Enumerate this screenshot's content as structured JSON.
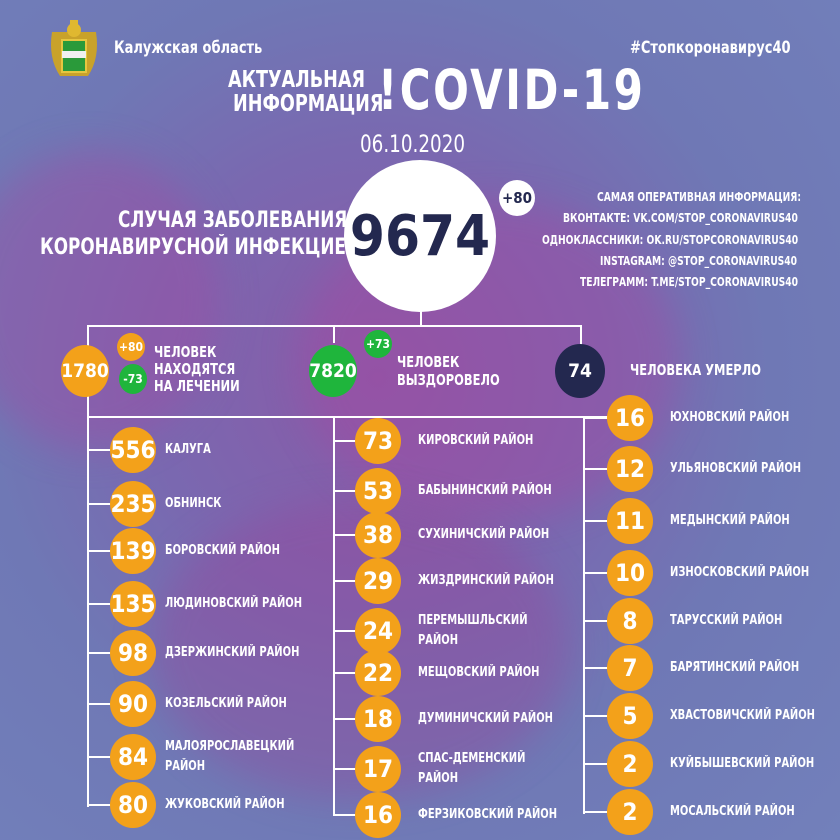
{
  "header": {
    "region": "Калужская область",
    "hashtag": "#Стопкоронавирус40",
    "title_line1": "АКТУАЛЬНАЯ",
    "title_line2": "ИНФОРМАЦИЯ",
    "title_main": "!COVID-19",
    "date": "06.10.2020"
  },
  "total": {
    "label_line1": "СЛУЧАЯ ЗАБОЛЕВАНИЯ",
    "label_line2": "КОРОНАВИРУСНОЙ ИНФЕКЦИЕЙ",
    "value": "9674",
    "delta": "+80"
  },
  "links": [
    "САМАЯ ОПЕРАТИВНАЯ ИНФОРМАЦИЯ:",
    "ВКОНТАКТЕ: VK.COM/STOP_CORONAVIRUS40",
    "ОДНОКЛАССНИКИ: OK.RU/STOPCORONAVIRUS40",
    "INSTAGRAM: @STOP_CORONAVIRUS40",
    "ТЕЛЕГРАММ: T.ME/STOP_CORONAVIRUS40"
  ],
  "stats": {
    "treatment": {
      "value": "1780",
      "plus": "+80",
      "minus": "-73",
      "label1": "ЧЕЛОВЕК",
      "label2": "НАХОДЯТСЯ",
      "label3": "НА ЛЕЧЕНИИ"
    },
    "recovered": {
      "value": "7820",
      "plus": "+73",
      "label1": "ЧЕЛОВЕК",
      "label2": "ВЫЗДОРОВЕЛО"
    },
    "died": {
      "value": "74",
      "label": "ЧЕЛОВЕКА УМЕРЛО"
    }
  },
  "colors": {
    "orange": "#f3a11a",
    "green": "#1fb53c",
    "navy": "#23284f"
  },
  "districts": {
    "left": [
      {
        "n": "556",
        "name": "КАЛУГА"
      },
      {
        "n": "235",
        "name": "ОБНИНСК"
      },
      {
        "n": "139",
        "name": "БОРОВСКИЙ РАЙОН"
      },
      {
        "n": "135",
        "name": "ЛЮДИНОВСКИЙ РАЙОН"
      },
      {
        "n": "98",
        "name": "ДЗЕРЖИНСКИЙ РАЙОН"
      },
      {
        "n": "90",
        "name": "КОЗЕЛЬСКИЙ РАЙОН"
      },
      {
        "n": "84",
        "name": "МАЛОЯРОСЛАВЕЦКИЙ",
        "name2": "РАЙОН"
      },
      {
        "n": "80",
        "name": "ЖУКОВСКИЙ РАЙОН"
      }
    ],
    "middle": [
      {
        "n": "73",
        "name": "КИРОВСКИЙ РАЙОН"
      },
      {
        "n": "53",
        "name": "БАБЫНИНСКИЙ РАЙОН"
      },
      {
        "n": "38",
        "name": "СУХИНИЧСКИЙ РАЙОН"
      },
      {
        "n": "29",
        "name": "ЖИЗДРИНСКИЙ РАЙОН"
      },
      {
        "n": "24",
        "name": "ПЕРЕМЫШЛЬСКИЙ",
        "name2": "РАЙОН"
      },
      {
        "n": "22",
        "name": "МЕЩОВСКИЙ РАЙОН"
      },
      {
        "n": "18",
        "name": "ДУМИНИЧСКИЙ РАЙОН"
      },
      {
        "n": "17",
        "name": "СПАС-ДЕМЕНСКИЙ",
        "name2": "РАЙОН"
      },
      {
        "n": "16",
        "name": "ФЕРЗИКОВСКИЙ РАЙОН"
      }
    ],
    "right": [
      {
        "n": "16",
        "name": "ЮХНОВСКИЙ РАЙОН"
      },
      {
        "n": "12",
        "name": "УЛЬЯНОВСКИЙ РАЙОН"
      },
      {
        "n": "11",
        "name": "МЕДЫНСКИЙ РАЙОН"
      },
      {
        "n": "10",
        "name": "ИЗНОСКОВСКИЙ РАЙОН"
      },
      {
        "n": "8",
        "name": "ТАРУССКИЙ РАЙОН"
      },
      {
        "n": "7",
        "name": "БАРЯТИНСКИЙ РАЙОН"
      },
      {
        "n": "5",
        "name": "ХВАСТОВИЧСКИЙ РАЙОН"
      },
      {
        "n": "2",
        "name": "КУЙБЫШЕВСКИЙ РАЙОН"
      },
      {
        "n": "2",
        "name": "МОСАЛЬСКИЙ РАЙОН"
      }
    ]
  }
}
